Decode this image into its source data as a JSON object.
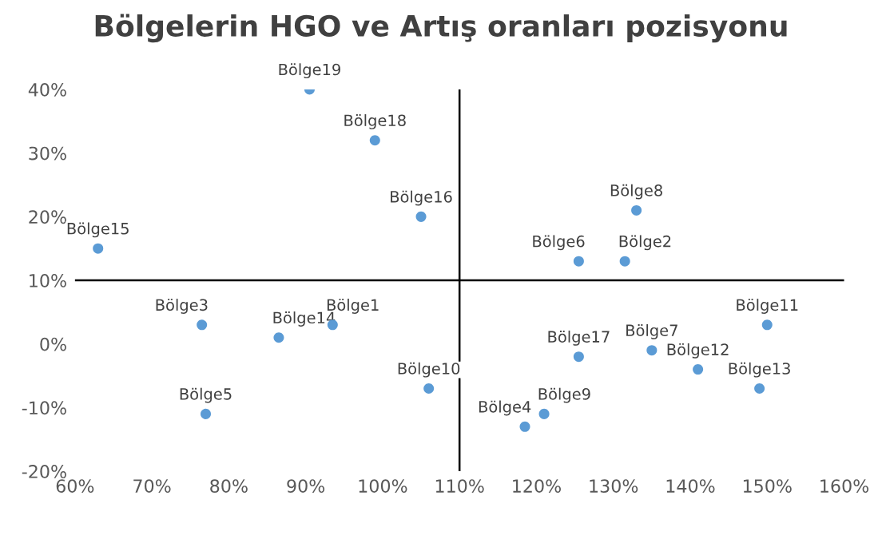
{
  "chart_data": {
    "type": "scatter",
    "title": "Bölgelerin HGO ve Artış oranları pozisyonu",
    "x": [
      93.5,
      131.5,
      76.5,
      118.5,
      77,
      125.5,
      135,
      133,
      121,
      106,
      150,
      141,
      149,
      86.5,
      63,
      105,
      125.5,
      99,
      90.5
    ],
    "series": [
      {
        "color": "#5b9bd5",
        "values": [
          3,
          13,
          3,
          -13,
          -11,
          13,
          -1,
          21,
          -11,
          -7,
          3,
          -4,
          -7,
          1,
          15,
          20,
          -2,
          32,
          40
        ]
      }
    ],
    "annotations": [
      {
        "text": "Bölge1",
        "x": 93.5,
        "y": 3
      },
      {
        "text": "Bölge2",
        "x": 131.5,
        "y": 13
      },
      {
        "text": "Bölge3",
        "x": 76.5,
        "y": 3
      },
      {
        "text": "Bölge4",
        "x": 118.5,
        "y": -13
      },
      {
        "text": "Bölge5",
        "x": 77,
        "y": -11
      },
      {
        "text": "Bölge6",
        "x": 125.5,
        "y": 13
      },
      {
        "text": "Bölge7",
        "x": 135,
        "y": -1
      },
      {
        "text": "Bölge8",
        "x": 133,
        "y": 21
      },
      {
        "text": "Bölge9",
        "x": 121,
        "y": -11
      },
      {
        "text": "Bölge10",
        "x": 106,
        "y": -7
      },
      {
        "text": "Bölge11",
        "x": 150,
        "y": 3
      },
      {
        "text": "Bölge12",
        "x": 141,
        "y": -4
      },
      {
        "text": "Bölge13",
        "x": 149,
        "y": -7
      },
      {
        "text": "Bölge14",
        "x": 86.5,
        "y": 1
      },
      {
        "text": "Bölge15",
        "x": 63,
        "y": 15
      },
      {
        "text": "Bölge16",
        "x": 105,
        "y": 20
      },
      {
        "text": "Bölge17",
        "x": 125.5,
        "y": -2
      },
      {
        "text": "Bölge18",
        "x": 99,
        "y": 32
      },
      {
        "text": "Bölge19",
        "x": 90.5,
        "y": 40
      }
    ],
    "xlim": [
      60,
      160
    ],
    "ylim": [
      -20,
      40
    ],
    "xticks": [
      {
        "value": 60,
        "label": "60%"
      },
      {
        "value": 70,
        "label": "70%"
      },
      {
        "value": 80,
        "label": "80%"
      },
      {
        "value": 90,
        "label": "90%"
      },
      {
        "value": 100,
        "label": "100%"
      },
      {
        "value": 110,
        "label": "110%"
      },
      {
        "value": 120,
        "label": "120%"
      },
      {
        "value": 130,
        "label": "130%"
      },
      {
        "value": 140,
        "label": "140%"
      },
      {
        "value": 150,
        "label": "150%"
      },
      {
        "value": 160,
        "label": "160%"
      }
    ],
    "yticks": [
      {
        "value": -20,
        "label": "-20%"
      },
      {
        "value": -10,
        "label": "-10%"
      },
      {
        "value": 0,
        "label": "0%"
      },
      {
        "value": 10,
        "label": "10%"
      },
      {
        "value": 20,
        "label": "20%"
      },
      {
        "value": 30,
        "label": "30%"
      },
      {
        "value": 40,
        "label": "40%"
      }
    ],
    "ref_lines": [
      {
        "axis": "x",
        "value": 110,
        "color": "#000000"
      },
      {
        "axis": "y",
        "value": 10,
        "color": "#000000"
      }
    ],
    "grid": false,
    "marker": "circle"
  }
}
